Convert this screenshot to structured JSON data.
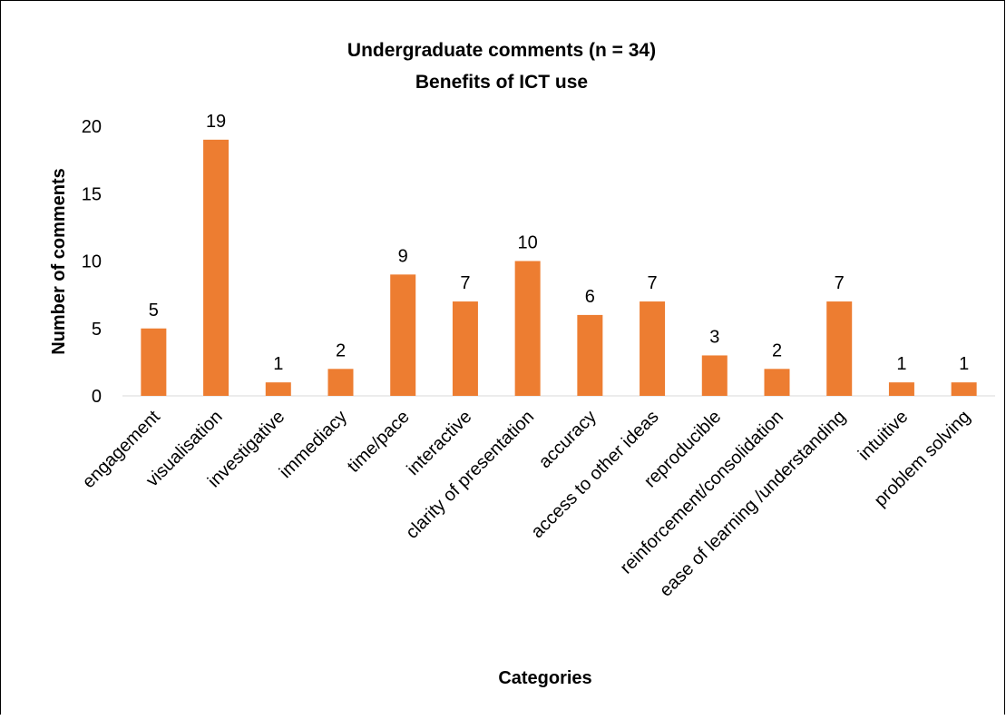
{
  "chart_data": {
    "type": "bar",
    "title": "Undergraduate comments (n = 34)",
    "subtitle": "Benefits of ICT use",
    "xlabel": "Categories",
    "ylabel": "Number of comments",
    "categories": [
      "engagement",
      "visualisation",
      "investigative",
      "immediacy",
      "time/pace",
      "interactive",
      "clarity of presentation",
      "accuracy",
      "access to other ideas",
      "reproducible",
      "reinforcement/consolidation",
      "ease of learning /understanding",
      "intuitive",
      "problem solving"
    ],
    "values": [
      5,
      19,
      1,
      2,
      9,
      7,
      10,
      6,
      7,
      3,
      2,
      7,
      1,
      1
    ],
    "ylim": [
      0,
      20
    ],
    "yticks": [
      0,
      5,
      10,
      15,
      20
    ],
    "grid": false,
    "legend": "none",
    "data_labels": true,
    "bar_color": "#ED7D31"
  }
}
